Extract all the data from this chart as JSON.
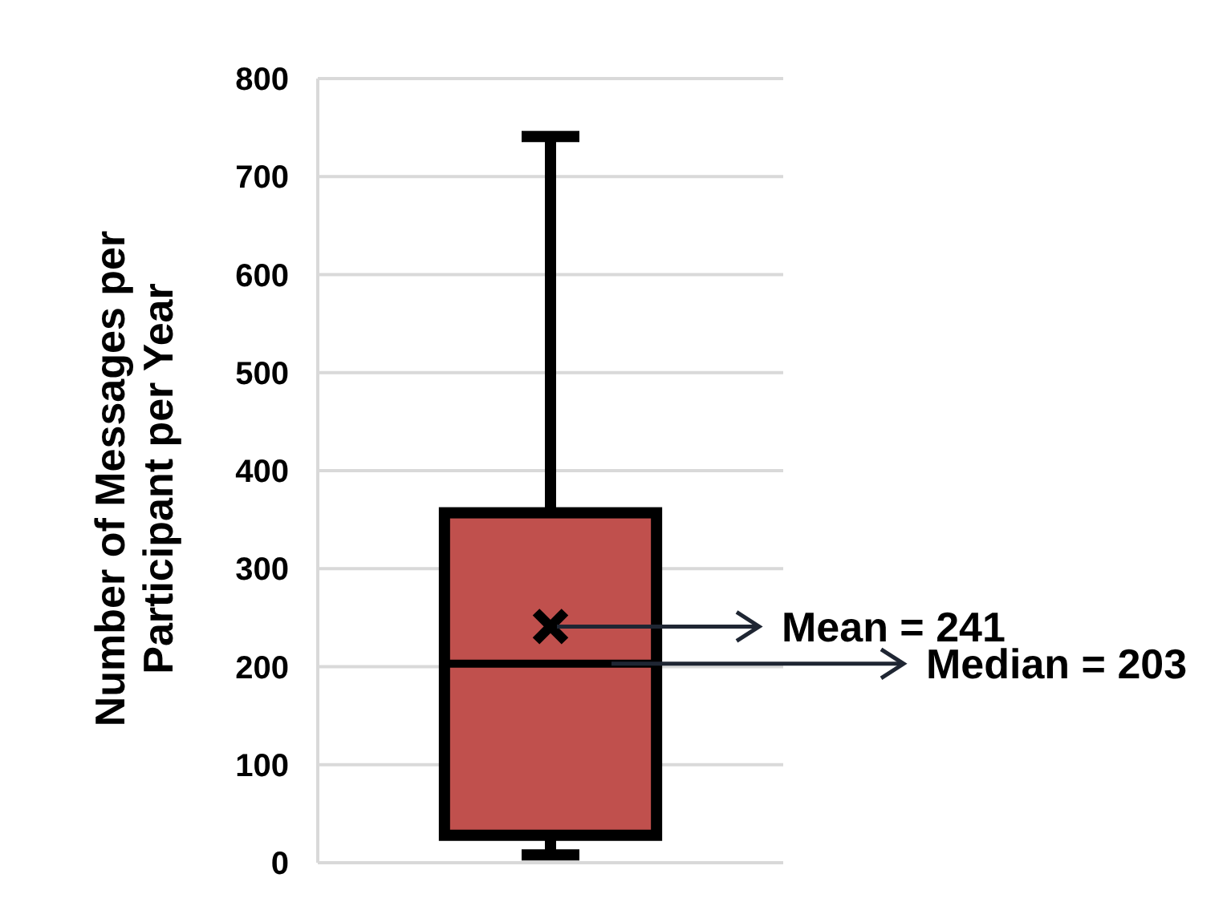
{
  "chart_data": {
    "type": "box",
    "ylabel": "Number of Messages per Participant per Year",
    "categories": [
      null
    ],
    "boxes": [
      {
        "low": 8,
        "q1": 28,
        "median": 203,
        "q3": 357,
        "high": 741,
        "mean": 241
      }
    ],
    "color": "#c0504d",
    "ylim": [
      0,
      800
    ],
    "yticks": [
      0,
      100,
      200,
      300,
      400,
      500,
      600,
      700,
      800
    ],
    "grid": "y",
    "marker": "cross",
    "annotations": [
      "Mean = 241",
      "Median = 203"
    ]
  }
}
